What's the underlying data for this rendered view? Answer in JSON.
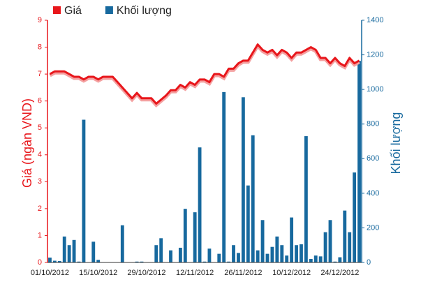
{
  "chart_data": {
    "type": "combo",
    "ylabel": "Giá (ngàn VND)",
    "y2label": "Khối lượng",
    "ylim": [
      0,
      9
    ],
    "yticks": [
      0,
      1,
      2,
      3,
      4,
      5,
      6,
      7,
      8,
      9
    ],
    "y2lim": [
      0,
      1400
    ],
    "y2ticks": [
      0,
      200,
      400,
      600,
      800,
      1000,
      1200,
      1400
    ],
    "categories": [
      "01/10/2012",
      null,
      null,
      null,
      null,
      null,
      null,
      null,
      null,
      null,
      "15/10/2012",
      null,
      null,
      null,
      null,
      null,
      null,
      null,
      null,
      null,
      "29/10/2012",
      null,
      null,
      null,
      null,
      null,
      null,
      null,
      null,
      null,
      "12/11/2012",
      null,
      null,
      null,
      null,
      null,
      null,
      null,
      null,
      null,
      "26/11/2012",
      null,
      null,
      null,
      null,
      null,
      null,
      null,
      null,
      null,
      "10/12/2012",
      null,
      null,
      null,
      null,
      null,
      null,
      null,
      null,
      null,
      "24/12/2012",
      null,
      null,
      null,
      null
    ],
    "series": [
      {
        "name": "Giá",
        "type": "line",
        "color": "#e8161b",
        "values": [
          7.0,
          7.1,
          7.1,
          7.1,
          7.0,
          6.9,
          6.9,
          6.8,
          6.9,
          6.9,
          6.8,
          6.9,
          6.9,
          6.9,
          6.7,
          6.5,
          6.3,
          6.1,
          6.3,
          6.1,
          6.1,
          6.1,
          5.9,
          6.05,
          6.2,
          6.4,
          6.4,
          6.6,
          6.5,
          6.7,
          6.6,
          6.8,
          6.8,
          6.7,
          7.0,
          7.0,
          6.9,
          7.2,
          7.2,
          7.4,
          7.5,
          7.5,
          7.8,
          8.1,
          7.9,
          7.8,
          7.9,
          7.7,
          7.9,
          7.8,
          7.6,
          7.8,
          7.8,
          7.9,
          8.0,
          7.9,
          7.6,
          7.6,
          7.4,
          7.6,
          7.4,
          7.3,
          7.6,
          7.4,
          7.5
        ]
      },
      {
        "name": "Khối lượng",
        "type": "bar",
        "axis": "y2",
        "color": "#17699e",
        "values": [
          28,
          10,
          8,
          150,
          100,
          130,
          5,
          825,
          0,
          120,
          15,
          0,
          0,
          0,
          0,
          215,
          0,
          0,
          5,
          5,
          0,
          0,
          100,
          140,
          0,
          70,
          0,
          85,
          310,
          0,
          290,
          665,
          5,
          80,
          0,
          50,
          985,
          5,
          100,
          55,
          955,
          445,
          735,
          70,
          245,
          50,
          90,
          150,
          100,
          40,
          260,
          100,
          105,
          730,
          20,
          40,
          35,
          175,
          245,
          5,
          30,
          300,
          175,
          520,
          1165
        ]
      }
    ]
  }
}
